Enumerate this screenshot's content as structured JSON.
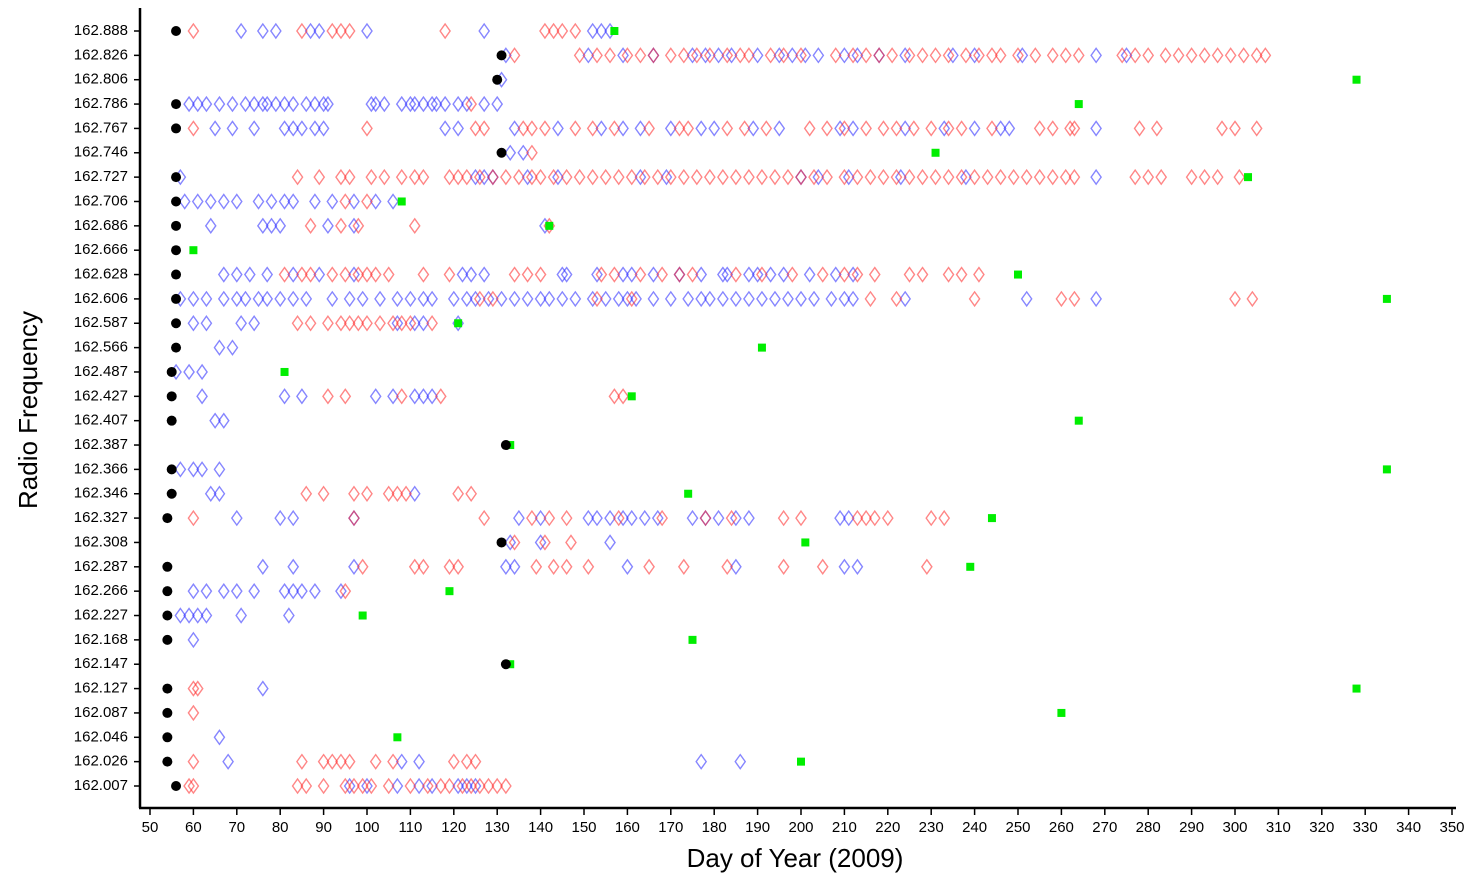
{
  "chart_data": {
    "type": "scatter",
    "xlabel": "Day of Year (2009)",
    "ylabel": "Radio Frequency",
    "xlim": [
      50,
      350
    ],
    "xticks": [
      50,
      60,
      70,
      80,
      90,
      100,
      110,
      120,
      130,
      140,
      150,
      160,
      170,
      180,
      190,
      200,
      210,
      220,
      230,
      240,
      250,
      260,
      270,
      280,
      290,
      300,
      310,
      320,
      330,
      340,
      350
    ],
    "categories": [
      "162.888",
      "162.826",
      "162.806",
      "162.786",
      "162.767",
      "162.746",
      "162.727",
      "162.706",
      "162.686",
      "162.666",
      "162.628",
      "162.606",
      "162.587",
      "162.566",
      "162.487",
      "162.427",
      "162.407",
      "162.387",
      "162.366",
      "162.346",
      "162.327",
      "162.308",
      "162.287",
      "162.266",
      "162.227",
      "162.168",
      "162.147",
      "162.127",
      "162.087",
      "162.046",
      "162.026",
      "162.007"
    ],
    "series": [
      {
        "color": "#000000",
        "marker": "circle",
        "values": [
          56,
          131,
          130,
          56,
          56,
          131,
          56,
          56,
          56,
          56,
          56,
          56,
          56,
          56,
          55,
          55,
          55,
          132,
          55,
          55,
          54,
          131,
          54,
          54,
          54,
          54,
          132,
          54,
          54,
          54,
          54,
          56
        ]
      },
      {
        "color": "#00ee00",
        "marker": "square",
        "values": [
          157,
          null,
          328,
          264,
          null,
          231,
          303,
          108,
          142,
          60,
          250,
          335,
          121,
          191,
          81,
          161,
          264,
          133,
          335,
          174,
          244,
          201,
          239,
          119,
          99,
          175,
          133,
          328,
          260,
          107,
          200,
          null
        ]
      },
      {
        "color": "#2222ff",
        "marker": "diamond",
        "values": [
          [
            71,
            76,
            79,
            87,
            89,
            100,
            127,
            152,
            154,
            156
          ],
          [
            132,
            151,
            159,
            166,
            175,
            178,
            181,
            184,
            190,
            195,
            198,
            201,
            204,
            210,
            213,
            218,
            224,
            235,
            240,
            251,
            268,
            275
          ],
          [
            131
          ],
          [
            59,
            61,
            63,
            66,
            69,
            72,
            74,
            76,
            77,
            79,
            81,
            83,
            86,
            88,
            90,
            91,
            101,
            102,
            104,
            108,
            110,
            111,
            113,
            115,
            116,
            118,
            121,
            123,
            127,
            130
          ],
          [
            65,
            69,
            74,
            81,
            83,
            85,
            88,
            90,
            118,
            121,
            134,
            144,
            154,
            159,
            163,
            170,
            177,
            180,
            189,
            195,
            209,
            212,
            224,
            233,
            240,
            246,
            248,
            268
          ],
          [
            133,
            136
          ],
          [
            57,
            125,
            127,
            129,
            137,
            144,
            163,
            169,
            200,
            204,
            211,
            223,
            238,
            268
          ],
          [
            58,
            61,
            64,
            67,
            70,
            75,
            78,
            81,
            83,
            88,
            92,
            97,
            102,
            106
          ],
          [
            64,
            76,
            78,
            80,
            91,
            97,
            141
          ],
          [],
          [
            67,
            70,
            73,
            77,
            83,
            89,
            97,
            122,
            124,
            127,
            145,
            146,
            153,
            159,
            161,
            166,
            172,
            177,
            182,
            183,
            188,
            190,
            193,
            196,
            202,
            208,
            212
          ],
          [
            57,
            60,
            63,
            67,
            70,
            72,
            75,
            77,
            80,
            83,
            86,
            92,
            96,
            99,
            103,
            107,
            110,
            113,
            115,
            120,
            123,
            125,
            128,
            131,
            134,
            137,
            140,
            142,
            145,
            148,
            152,
            155,
            158,
            160,
            162,
            166,
            170,
            174,
            177,
            179,
            182,
            185,
            188,
            191,
            194,
            197,
            200,
            203,
            207,
            210,
            212,
            224,
            252,
            268
          ],
          [
            60,
            63,
            71,
            74,
            107,
            111,
            113,
            121
          ],
          [
            66,
            69
          ],
          [
            56,
            59,
            62
          ],
          [
            62,
            81,
            85,
            102,
            106,
            111,
            113,
            115
          ],
          [
            65,
            67
          ],
          [],
          [
            57,
            60,
            62,
            66
          ],
          [
            64,
            66,
            111
          ],
          [
            70,
            80,
            83,
            97,
            135,
            140,
            151,
            153,
            156,
            159,
            161,
            164,
            167,
            175,
            178,
            181,
            185,
            188,
            209,
            211
          ],
          [
            133,
            140,
            156
          ],
          [
            76,
            83,
            97,
            132,
            134,
            160,
            185,
            210,
            213
          ],
          [
            60,
            63,
            67,
            70,
            74,
            81,
            83,
            85,
            88,
            94
          ],
          [
            57,
            59,
            61,
            63,
            71,
            82
          ],
          [
            60
          ],
          [],
          [
            76
          ],
          [],
          [
            66
          ],
          [
            68,
            108,
            112,
            177,
            186
          ],
          [
            96,
            100,
            107,
            112,
            115,
            121,
            123,
            125
          ]
        ]
      },
      {
        "color": "#ff2222",
        "marker": "diamond",
        "values": [
          [
            60,
            85,
            92,
            94,
            96,
            118,
            141,
            143,
            145,
            148
          ],
          [
            134,
            149,
            153,
            156,
            160,
            163,
            166,
            170,
            173,
            176,
            179,
            183,
            186,
            188,
            193,
            196,
            200,
            208,
            212,
            215,
            218,
            221,
            225,
            228,
            231,
            234,
            238,
            241,
            244,
            246,
            250,
            254,
            258,
            261,
            264,
            274,
            277,
            280,
            284,
            287,
            290,
            293,
            296,
            299,
            302,
            305,
            307
          ],
          [],
          [
            124
          ],
          [
            60,
            100,
            125,
            127,
            136,
            138,
            141,
            148,
            152,
            157,
            165,
            172,
            174,
            183,
            187,
            192,
            202,
            206,
            210,
            215,
            219,
            222,
            226,
            230,
            234,
            237,
            244,
            255,
            258,
            262,
            263,
            278,
            282,
            297,
            300,
            305
          ],
          [
            138
          ],
          [
            84,
            89,
            94,
            96,
            101,
            104,
            108,
            111,
            113,
            119,
            121,
            123,
            126,
            129,
            132,
            135,
            138,
            140,
            143,
            146,
            149,
            152,
            155,
            158,
            161,
            164,
            167,
            170,
            173,
            176,
            179,
            182,
            185,
            188,
            191,
            194,
            197,
            200,
            203,
            206,
            210,
            213,
            216,
            219,
            222,
            225,
            228,
            231,
            234,
            237,
            240,
            243,
            246,
            249,
            252,
            255,
            258,
            261,
            263,
            277,
            280,
            283,
            290,
            293,
            296,
            301
          ],
          [
            95,
            100
          ],
          [
            87,
            94,
            98,
            111,
            142
          ],
          [],
          [
            81,
            85,
            87,
            92,
            95,
            98,
            100,
            102,
            105,
            113,
            119,
            134,
            137,
            140,
            154,
            157,
            163,
            168,
            172,
            175,
            185,
            191,
            198,
            205,
            210,
            213,
            217,
            225,
            228,
            234,
            237,
            241
          ],
          [
            126,
            129,
            153,
            161,
            216,
            222,
            240,
            260,
            263,
            300,
            304
          ],
          [
            84,
            87,
            91,
            94,
            96,
            98,
            100,
            103,
            106,
            108,
            110,
            115
          ],
          [],
          [],
          [
            91,
            95,
            108,
            117,
            157,
            159
          ],
          [],
          [],
          [],
          [
            86,
            90,
            97,
            100,
            105,
            107,
            109,
            121,
            124
          ],
          [
            60,
            97,
            127,
            138,
            142,
            146,
            158,
            168,
            178,
            184,
            196,
            200,
            213,
            215,
            217,
            220,
            230,
            233
          ],
          [
            134,
            141,
            147
          ],
          [
            99,
            111,
            113,
            119,
            121,
            139,
            143,
            146,
            151,
            165,
            173,
            183,
            196,
            205,
            229
          ],
          [
            95
          ],
          [],
          [],
          [],
          [
            60,
            61
          ],
          [
            60
          ],
          [],
          [
            60,
            85,
            90,
            92,
            94,
            96,
            102,
            106,
            120,
            123,
            125
          ],
          [
            59,
            60,
            84,
            86,
            90,
            95,
            97,
            99,
            101,
            105,
            110,
            114,
            117,
            119,
            122,
            124,
            126,
            128,
            130,
            132
          ]
        ]
      }
    ]
  }
}
